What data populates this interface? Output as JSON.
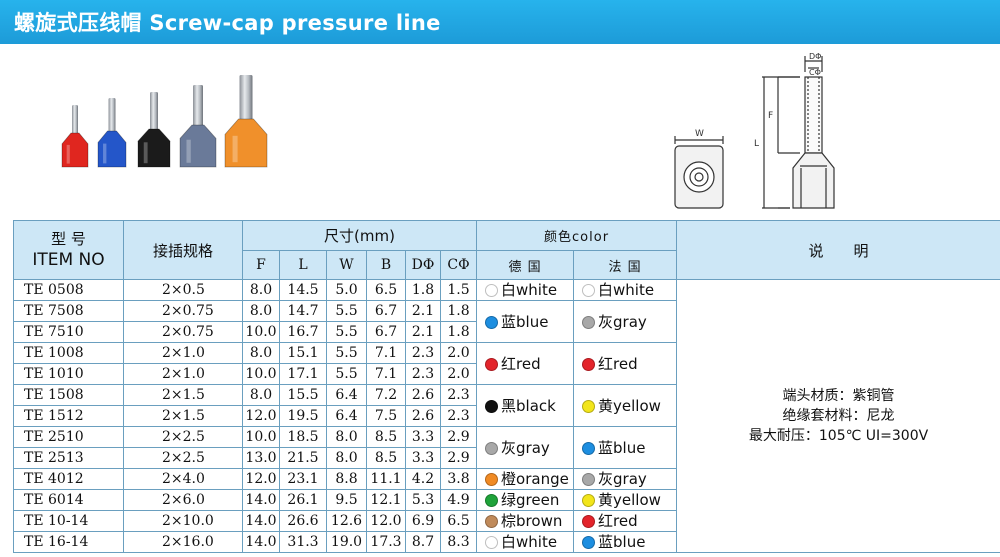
{
  "title": "螺旋式压线帽 Screw-cap pressure line",
  "colors": {
    "title_bar": "#1d9bd8",
    "header_fill": "#cde7f6",
    "grid": "#6a9fbf"
  },
  "product_photo": {
    "ferrules": [
      {
        "sleeve_color": "#e0261f"
      },
      {
        "sleeve_color": "#2456c9"
      },
      {
        "sleeve_color": "#1b1b1b"
      },
      {
        "sleeve_color": "#6a7a99"
      },
      {
        "sleeve_color": "#f0902b"
      }
    ]
  },
  "diagram": {
    "labels": {
      "d": "DΦ",
      "c": "CΦ",
      "f": "F",
      "l": "L",
      "w": "W"
    }
  },
  "table": {
    "header": {
      "model_cn": "型 号",
      "model_en": "ITEM NO",
      "spec": "接插规格",
      "size": "尺寸(mm)",
      "size_cols": [
        "F",
        "L",
        "W",
        "B",
        "DΦ",
        "CΦ"
      ],
      "color": "颜色color",
      "color_cols": [
        "德 国",
        "法 国"
      ],
      "notes": "说　　明"
    },
    "rows": [
      {
        "model": "TE 0508",
        "spec": "2×0.5",
        "F": "8.0",
        "L": "14.5",
        "W": "5.0",
        "B": "6.5",
        "D": "1.8",
        "C": "1.5"
      },
      {
        "model": "TE 7508",
        "spec": "2×0.75",
        "F": "8.0",
        "L": "14.7",
        "W": "5.5",
        "B": "6.7",
        "D": "2.1",
        "C": "1.8"
      },
      {
        "model": "TE 7510",
        "spec": "2×0.75",
        "F": "10.0",
        "L": "16.7",
        "W": "5.5",
        "B": "6.7",
        "D": "2.1",
        "C": "1.8"
      },
      {
        "model": "TE 1008",
        "spec": "2×1.0",
        "F": "8.0",
        "L": "15.1",
        "W": "5.5",
        "B": "7.1",
        "D": "2.3",
        "C": "2.0"
      },
      {
        "model": "TE 1010",
        "spec": "2×1.0",
        "F": "10.0",
        "L": "17.1",
        "W": "5.5",
        "B": "7.1",
        "D": "2.3",
        "C": "2.0"
      },
      {
        "model": "TE 1508",
        "spec": "2×1.5",
        "F": "8.0",
        "L": "15.5",
        "W": "6.4",
        "B": "7.2",
        "D": "2.6",
        "C": "2.3"
      },
      {
        "model": "TE 1512",
        "spec": "2×1.5",
        "F": "12.0",
        "L": "19.5",
        "W": "6.4",
        "B": "7.5",
        "D": "2.6",
        "C": "2.3"
      },
      {
        "model": "TE 2510",
        "spec": "2×2.5",
        "F": "10.0",
        "L": "18.5",
        "W": "8.0",
        "B": "8.5",
        "D": "3.3",
        "C": "2.9"
      },
      {
        "model": "TE 2513",
        "spec": "2×2.5",
        "F": "13.0",
        "L": "21.5",
        "W": "8.0",
        "B": "8.5",
        "D": "3.3",
        "C": "2.9"
      },
      {
        "model": "TE 4012",
        "spec": "2×4.0",
        "F": "12.0",
        "L": "23.1",
        "W": "8.8",
        "B": "11.1",
        "D": "4.2",
        "C": "3.8"
      },
      {
        "model": "TE 6014",
        "spec": "2×6.0",
        "F": "14.0",
        "L": "26.1",
        "W": "9.5",
        "B": "12.1",
        "D": "5.3",
        "C": "4.9"
      },
      {
        "model": "TE 10-14",
        "spec": "2×10.0",
        "F": "14.0",
        "L": "26.6",
        "W": "12.6",
        "B": "12.0",
        "D": "6.9",
        "C": "6.5"
      },
      {
        "model": "TE 16-14",
        "spec": "2×16.0",
        "F": "14.0",
        "L": "31.3",
        "W": "19.0",
        "B": "17.3",
        "D": "8.7",
        "C": "8.3"
      }
    ],
    "german_colors": [
      {
        "text": "白white",
        "color": "#ffffff"
      },
      {
        "text": "蓝blue",
        "color": "#1d8ee0"
      },
      {
        "text": "红red",
        "color": "#e3242b"
      },
      {
        "text": "黑black",
        "color": "#111111"
      },
      {
        "text": "灰gray",
        "color": "#a8a8a8"
      },
      {
        "text": "橙orange",
        "color": "#f08a24"
      },
      {
        "text": "绿green",
        "color": "#1fa33a"
      },
      {
        "text": "棕brown",
        "color": "#c08a5a"
      },
      {
        "text": "白white",
        "color": "#ffffff"
      }
    ],
    "french_colors": [
      {
        "text": "白white",
        "color": "#ffffff"
      },
      {
        "text": "灰gray",
        "color": "#a8a8a8"
      },
      {
        "text": "红red",
        "color": "#e3242b"
      },
      {
        "text": "黄yellow",
        "color": "#f2e51a"
      },
      {
        "text": "蓝blue",
        "color": "#1d8ee0"
      },
      {
        "text": "灰gray",
        "color": "#a8a8a8"
      },
      {
        "text": "黄yellow",
        "color": "#f2e51a"
      },
      {
        "text": "红red",
        "color": "#e3242b"
      },
      {
        "text": "蓝blue",
        "color": "#1d8ee0"
      }
    ],
    "notes": [
      "端头材质：紫铜管",
      "绝缘套材料：尼龙",
      "最大耐压：105℃  UI=300V"
    ]
  }
}
